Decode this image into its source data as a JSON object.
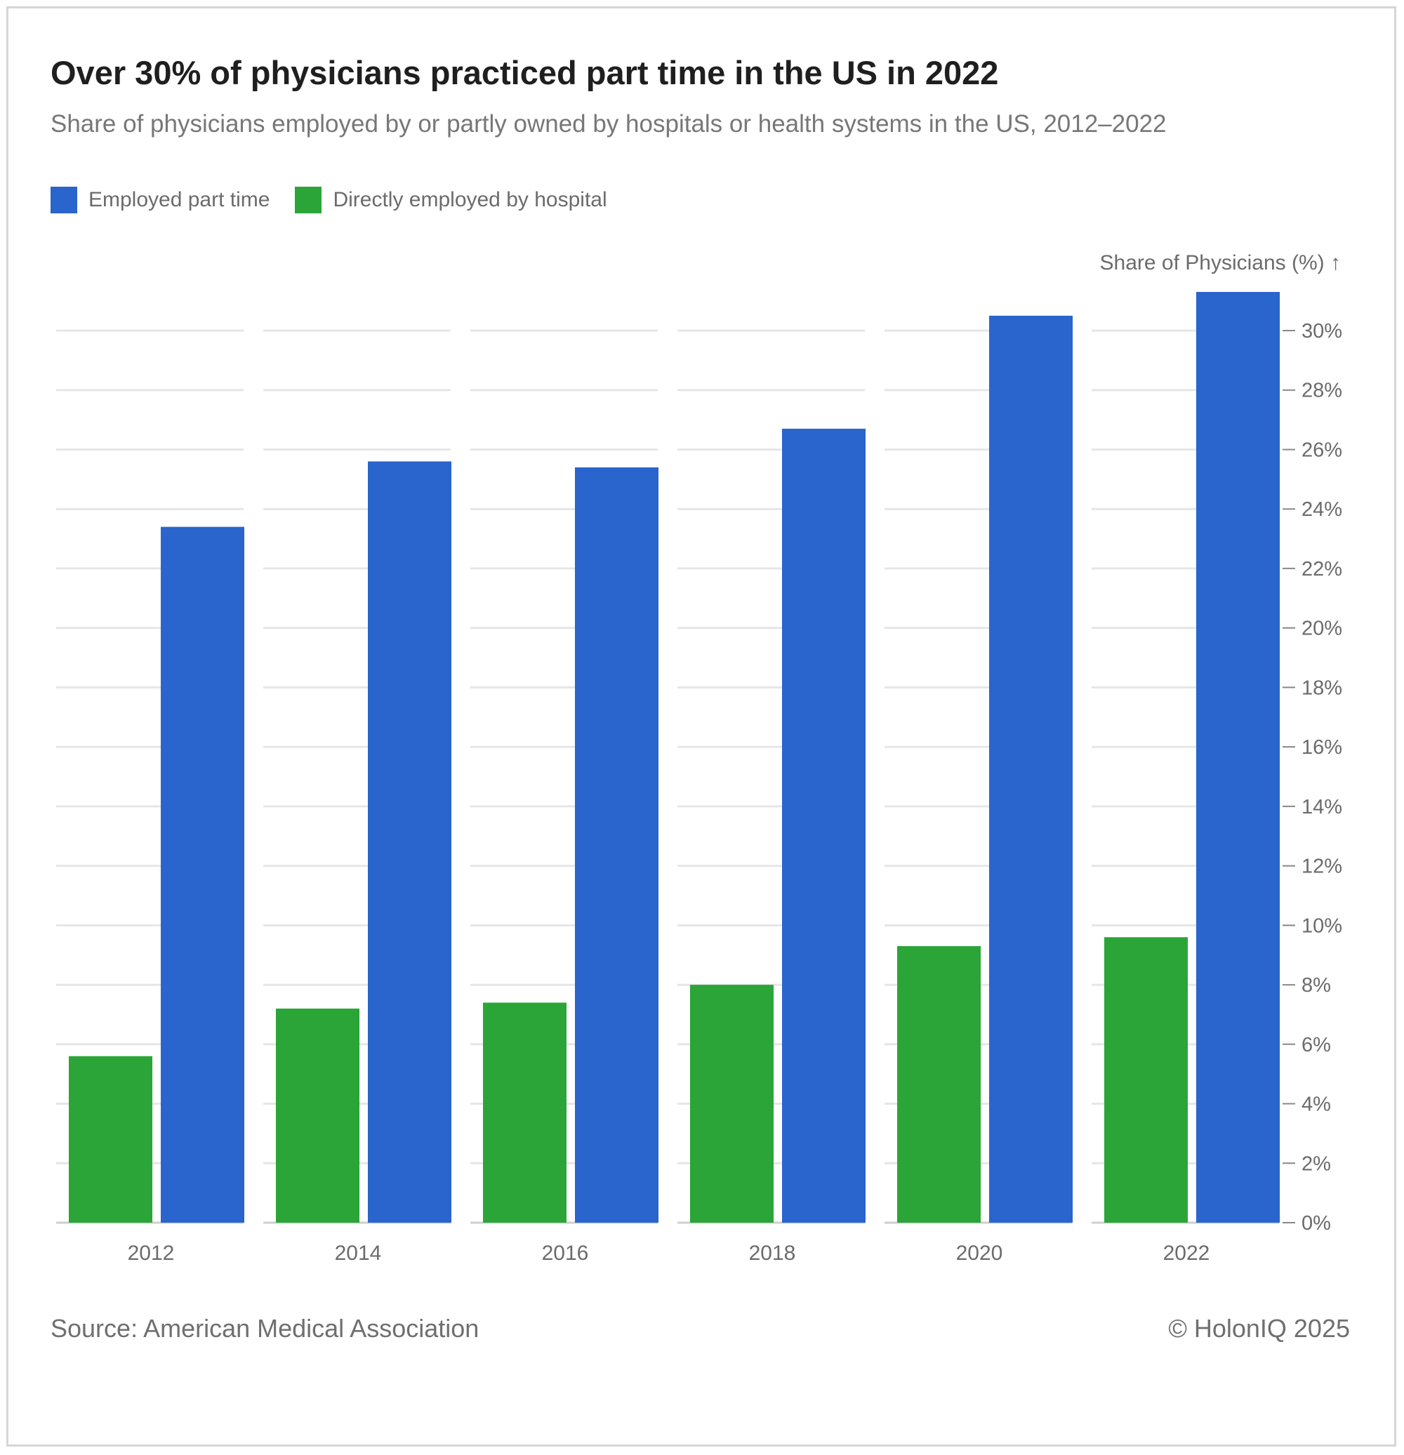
{
  "header": {
    "title": "Over 30% of physicians practiced part time in the US in 2022",
    "subtitle": "Share of physicians employed by or partly owned by hospitals or health systems in the US, 2012–2022"
  },
  "legend": [
    {
      "label": "Employed part time",
      "color": "#2965cc"
    },
    {
      "label": "Directly employed by hospital",
      "color": "#2ba537"
    }
  ],
  "chart_data": {
    "type": "bar",
    "title": "Over 30% of physicians practiced part time in the US in 2022",
    "xlabel": "",
    "ylabel": "Share of Physicians (%) ↑",
    "categories": [
      "2012",
      "2014",
      "2016",
      "2018",
      "2020",
      "2022"
    ],
    "series": [
      {
        "name": "Directly employed by hospital",
        "color": "#2ba537",
        "values": [
          5.6,
          7.2,
          7.4,
          8.0,
          9.3,
          9.6
        ]
      },
      {
        "name": "Employed part time",
        "color": "#2965cc",
        "values": [
          23.4,
          25.6,
          25.4,
          26.7,
          30.5,
          31.3
        ]
      }
    ],
    "ylim": [
      0,
      30
    ],
    "yticks": [
      0,
      2,
      4,
      6,
      8,
      10,
      12,
      14,
      16,
      18,
      20,
      22,
      24,
      26,
      28,
      30
    ],
    "ytick_labels": [
      "0%",
      "2%",
      "4%",
      "6%",
      "8%",
      "10%",
      "12%",
      "14%",
      "16%",
      "18%",
      "20%",
      "22%",
      "24%",
      "26%",
      "28%",
      "30%"
    ],
    "y_axis_position": "right",
    "grid": true,
    "legend_position": "top-left"
  },
  "footer": {
    "source": "Source: American Medical Association",
    "copyright": "© HolonIQ 2025"
  }
}
